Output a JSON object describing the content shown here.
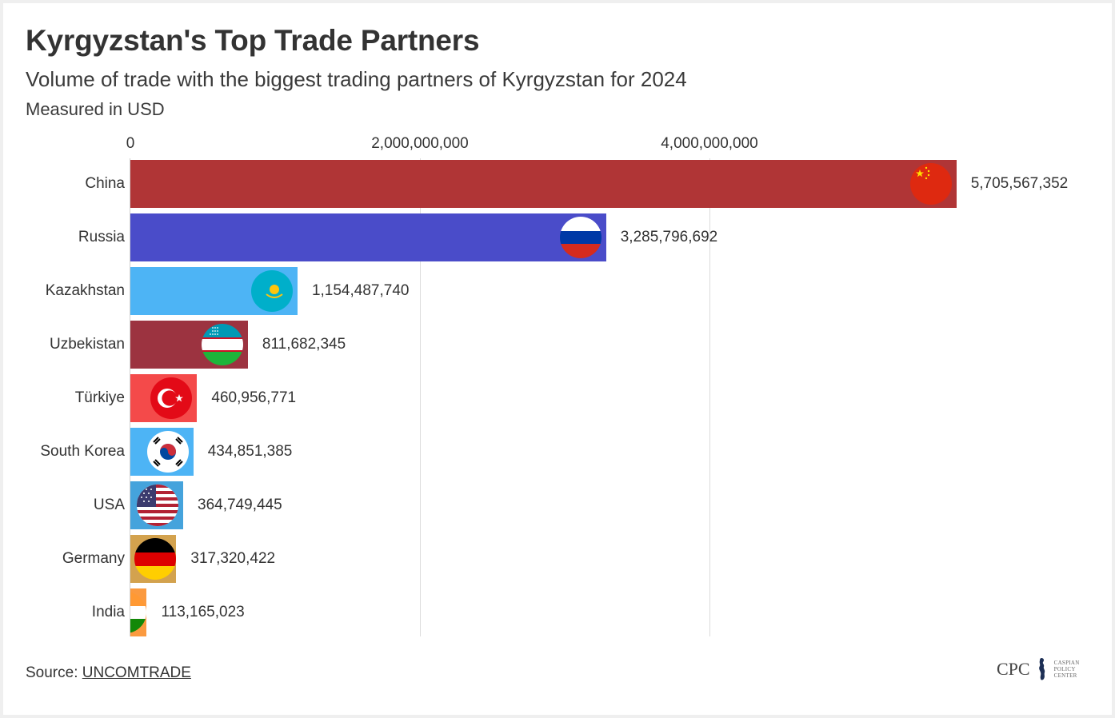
{
  "header": {
    "title": "Kyrgyzstan's Top Trade Partners",
    "subtitle": "Volume of trade with the biggest trading partners of Kyrgyzstan for 2024",
    "measure_note": "Measured in USD"
  },
  "axis": {
    "ticks": [
      {
        "value": 0,
        "label": "0"
      },
      {
        "value": 2000000000,
        "label": "2,000,000,000"
      },
      {
        "value": 4000000000,
        "label": "4,000,000,000"
      }
    ]
  },
  "rows": [
    {
      "country": "China",
      "value_label": "5,705,567,352",
      "bar_color": "#b03536",
      "flag": "china-flag-icon"
    },
    {
      "country": "Russia",
      "value_label": "3,285,796,692",
      "bar_color": "#4a4cc9",
      "flag": "russia-flag-icon"
    },
    {
      "country": "Kazakhstan",
      "value_label": "1,154,487,740",
      "bar_color": "#4db4f5",
      "flag": "kazakhstan-flag-icon"
    },
    {
      "country": "Uzbekistan",
      "value_label": "811,682,345",
      "bar_color": "#9c3340",
      "flag": "uzbekistan-flag-icon"
    },
    {
      "country": "Türkiye",
      "value_label": "460,956,771",
      "bar_color": "#f44a4a",
      "flag": "turkiye-flag-icon"
    },
    {
      "country": "South Korea",
      "value_label": "434,851,385",
      "bar_color": "#4db4f5",
      "flag": "south-korea-flag-icon"
    },
    {
      "country": "USA",
      "value_label": "364,749,445",
      "bar_color": "#45a3dc",
      "flag": "usa-flag-icon"
    },
    {
      "country": "Germany",
      "value_label": "317,320,422",
      "bar_color": "#d3a24e",
      "flag": "germany-flag-icon"
    },
    {
      "country": "India",
      "value_label": "113,165,023",
      "bar_color": "#fb9a3f",
      "flag": "india-flag-icon"
    }
  ],
  "footer": {
    "source_prefix": "Source: ",
    "source_link": "UNCOMTRADE",
    "logo_abbr": "CPC",
    "logo_line1": "CASPIAN",
    "logo_line2": "POLICY",
    "logo_line3": "CENTER"
  },
  "chart_data": {
    "type": "bar",
    "orientation": "horizontal",
    "title": "Kyrgyzstan's Top Trade Partners",
    "subtitle": "Volume of trade with the biggest trading partners of Kyrgyzstan for 2024",
    "xlabel": "Measured in USD",
    "ylabel": "",
    "categories": [
      "China",
      "Russia",
      "Kazakhstan",
      "Uzbekistan",
      "Türkiye",
      "South Korea",
      "USA",
      "Germany",
      "India"
    ],
    "values": [
      5705567352,
      3285796692,
      1154487740,
      811682345,
      460956771,
      434851385,
      364749445,
      317320422,
      113165023
    ],
    "colors": [
      "#b03536",
      "#4a4cc9",
      "#4db4f5",
      "#9c3340",
      "#f44a4a",
      "#4db4f5",
      "#45a3dc",
      "#d3a24e",
      "#fb9a3f"
    ],
    "xlim": [
      0,
      5705567352
    ],
    "x_ticks": [
      0,
      2000000000,
      4000000000
    ],
    "x_tick_labels": [
      "0",
      "2,000,000,000",
      "4,000,000,000"
    ],
    "grid": "vertical",
    "legend": "none",
    "data_labels": true,
    "source": "UNCOMTRADE"
  }
}
